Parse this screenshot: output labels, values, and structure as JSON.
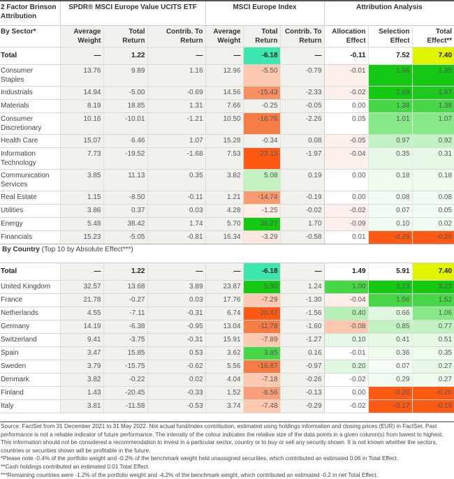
{
  "header": {
    "corner": "2 Factor Brinson Attribution",
    "groups": [
      "SPDR® MSCI Europe Value UCITS ETF",
      "MSCI Europe Index",
      "Attribution Analysis"
    ],
    "sector_label": "By Sector*",
    "columns": [
      "Average Weight",
      "Total Return",
      "Contrib. To Return",
      "Average Weight",
      "Total Return",
      "Contrib. To Return",
      "Allocation Effect",
      "Selection Effect",
      "Total Effect**"
    ]
  },
  "sector_total": {
    "label": "Total",
    "values": [
      "—",
      "1.22",
      "—",
      "—",
      "-6.18",
      "—",
      "-0.11",
      "7.52",
      "7.40"
    ],
    "colors": [
      "",
      "",
      "",
      "",
      "#3de8b0",
      "",
      "",
      "",
      "#e2f500"
    ]
  },
  "sectors": [
    {
      "label": "Consumer Staples",
      "values": [
        "13.76",
        "9.89",
        "1.16",
        "12.96",
        "-5.50",
        "-0.79",
        "-0.01",
        "1.96",
        "1.95"
      ],
      "colors": [
        "",
        "",
        "",
        "",
        "#fcc8b0",
        "",
        "#fdf0ec",
        "#14c814",
        "#14c814"
      ]
    },
    {
      "label": "Industrials",
      "values": [
        "14.94",
        "-5.00",
        "-0.69",
        "14.56",
        "-15.43",
        "-2.33",
        "-0.02",
        "1.69",
        "1.67"
      ],
      "colors": [
        "",
        "",
        "",
        "",
        "#f79060",
        "",
        "#fdf0ec",
        "#14c814",
        "#1ec81e"
      ]
    },
    {
      "label": "Materials",
      "values": [
        "8.19",
        "18.85",
        "1.31",
        "7.66",
        "-0.25",
        "-0.05",
        "0.00",
        "1.38",
        "1.38"
      ],
      "colors": [
        "",
        "",
        "",
        "",
        "",
        "",
        "#ffffff",
        "#46d846",
        "#46d846"
      ]
    },
    {
      "label": "Consumer Discretionary",
      "values": [
        "10.16",
        "-10.01",
        "-1.21",
        "10.50",
        "-18.76",
        "-2.26",
        "0.05",
        "1.01",
        "1.07"
      ],
      "colors": [
        "",
        "",
        "",
        "",
        "#f77c44",
        "",
        "#ffffff",
        "#86e886",
        "#86e886"
      ]
    },
    {
      "label": "Health Care",
      "values": [
        "15.07",
        "6.46",
        "1.07",
        "15.28",
        "-0.34",
        "0.08",
        "-0.05",
        "0.97",
        "0.92"
      ],
      "colors": [
        "",
        "",
        "",
        "",
        "",
        "",
        "#fdf0ec",
        "#c2f2c2",
        "#c2f2c2"
      ]
    },
    {
      "label": "Information Technology",
      "values": [
        "7.73",
        "-19.52",
        "-1.68",
        "7.53",
        "-23.15",
        "-1.97",
        "-0.04",
        "0.35",
        "0.31"
      ],
      "colors": [
        "",
        "",
        "",
        "",
        "#ff5a14",
        "",
        "#fdf0ec",
        "#e6f9e6",
        "#e6f9e6"
      ]
    },
    {
      "label": "Communication Services",
      "values": [
        "3.85",
        "11.13",
        "0.35",
        "3.82",
        "5.08",
        "0.19",
        "0.00",
        "0.18",
        "0.18"
      ],
      "colors": [
        "",
        "",
        "",
        "",
        "#c2f2c2",
        "",
        "#ffffff",
        "#eefbee",
        "#eefbee"
      ]
    },
    {
      "label": "Real Estate",
      "values": [
        "1.15",
        "-8.50",
        "-0.11",
        "1.21",
        "-14.74",
        "-0.19",
        "0.00",
        "0.08",
        "0.08"
      ],
      "colors": [
        "",
        "",
        "",
        "",
        "#f79a70",
        "",
        "#ffffff",
        "#f2fcf2",
        "#f2fcf2"
      ]
    },
    {
      "label": "Utilities",
      "values": [
        "3.86",
        "0.37",
        "0.03",
        "4.28",
        "-1.25",
        "-0.02",
        "-0.02",
        "0.07",
        "0.05"
      ],
      "colors": [
        "",
        "",
        "",
        "",
        "#fdeee8",
        "",
        "#fdf0ec",
        "#f2fcf2",
        "#f2fcf2"
      ]
    },
    {
      "label": "Energy",
      "values": [
        "5.48",
        "38.42",
        "1.74",
        "5.70",
        "36.27",
        "1.70",
        "-0.09",
        "0.10",
        "0.02"
      ],
      "colors": [
        "",
        "",
        "",
        "",
        "#14c814",
        "",
        "#fdf0ec",
        "#f2fcf2",
        "#f2fcf2"
      ]
    },
    {
      "label": "Financials",
      "values": [
        "15.23",
        "-5.05",
        "-0.81",
        "16.34",
        "-3.29",
        "-0.58",
        "0.01",
        "-0.29",
        "-0.28"
      ],
      "colors": [
        "",
        "",
        "",
        "",
        "#fde8e0",
        "",
        "#ffffff",
        "#ff5a14",
        "#ff5a14"
      ]
    }
  ],
  "country_heading": {
    "bold": "By Country",
    "rest": " (Top 10 by Absolute Effect***)"
  },
  "country_total": {
    "label": "Total",
    "values": [
      "—",
      "1.22",
      "—",
      "—",
      "-6.18",
      "—",
      "1.49",
      "5.91",
      "7.40"
    ],
    "colors": [
      "",
      "",
      "",
      "",
      "#3de8b0",
      "",
      "#ffffff",
      "#ffffff",
      "#e2f500"
    ]
  },
  "countries": [
    {
      "label": "United Kingdom",
      "values": [
        "32.57",
        "13.68",
        "3.89",
        "23.87",
        "5.90",
        "1.24",
        "1.00",
        "2.23",
        "3.23"
      ],
      "colors": [
        "",
        "",
        "",
        "",
        "#14c814",
        "",
        "#46d846",
        "#14c814",
        "#14c814"
      ]
    },
    {
      "label": "France",
      "values": [
        "21.78",
        "-0.27",
        "0.03",
        "17.76",
        "-7.29",
        "-1.30",
        "-0.04",
        "1.56",
        "1.52"
      ],
      "colors": [
        "",
        "",
        "",
        "",
        "#fcc8b0",
        "",
        "#fdeeea",
        "#46d846",
        "#46d846"
      ]
    },
    {
      "label": "Netherlands",
      "values": [
        "4.55",
        "-7.11",
        "-0.31",
        "6.74",
        "-20.47",
        "-1.56",
        "0.40",
        "0.66",
        "1.06"
      ],
      "colors": [
        "",
        "",
        "",
        "",
        "#ff5a14",
        "",
        "#b6f0b6",
        "#e0f8e0",
        "#86e886"
      ]
    },
    {
      "label": "Germany",
      "values": [
        "14.19",
        "-6.38",
        "-0.95",
        "13.04",
        "-11.78",
        "-1.60",
        "-0.08",
        "0.85",
        "0.77"
      ],
      "colors": [
        "",
        "",
        "",
        "",
        "#f77c44",
        "",
        "#fcc8b0",
        "#c2f2c2",
        "#c2f2c2"
      ]
    },
    {
      "label": "Switzerland",
      "values": [
        "9.41",
        "-3.75",
        "-0.31",
        "15.91",
        "-7.89",
        "-1.27",
        "0.10",
        "0.41",
        "0.51"
      ],
      "colors": [
        "",
        "",
        "",
        "",
        "#fcc8b0",
        "",
        "#e6f9e6",
        "#e6f9e6",
        "#e6f9e6"
      ]
    },
    {
      "label": "Spain",
      "values": [
        "3.47",
        "15.85",
        "0.53",
        "3.62",
        "3.85",
        "0.16",
        "-0.01",
        "0.36",
        "0.35"
      ],
      "colors": [
        "",
        "",
        "",
        "",
        "#46d846",
        "",
        "#ffffff",
        "#eefbee",
        "#eefbee"
      ]
    },
    {
      "label": "Sweden",
      "values": [
        "3.79",
        "-15.75",
        "-0.62",
        "5.56",
        "-16.87",
        "-0.97",
        "0.20",
        "0.07",
        "0.27"
      ],
      "colors": [
        "",
        "",
        "",
        "",
        "#f77c44",
        "",
        "#e0f8e0",
        "#f6fdf6",
        "#e6f9e6"
      ]
    },
    {
      "label": "Denmark",
      "values": [
        "3.82",
        "-0.22",
        "0.02",
        "4.04",
        "-7.18",
        "-0.26",
        "-0.02",
        "0.29",
        "0.27"
      ],
      "colors": [
        "",
        "",
        "",
        "",
        "#fcc8b0",
        "",
        "#ffffff",
        "#eefbee",
        "#eefbee"
      ]
    },
    {
      "label": "Finland",
      "values": [
        "1.43",
        "-20.45",
        "-0.33",
        "1.52",
        "-8.56",
        "-0.13",
        "0.00",
        "-0.20",
        "-0.20"
      ],
      "colors": [
        "",
        "",
        "",
        "",
        "#f9a07a",
        "",
        "#ffffff",
        "#ff5a14",
        "#ff5a14"
      ]
    },
    {
      "label": "Italy",
      "values": [
        "3.81",
        "-11.58",
        "-0.53",
        "3.74",
        "-7.48",
        "-0.29",
        "-0.02",
        "-0.17",
        "-0.19"
      ],
      "colors": [
        "",
        "",
        "",
        "",
        "#fcc8b0",
        "",
        "#ffffff",
        "#ff5a14",
        "#ff5a14"
      ]
    }
  ],
  "footer": [
    "Source: FactSet from 31 December 2021 to 31 May 2022. Not actual fund/index contribution, estimated using holdings information and closing prices (EUR) in FactSet. Past performance is not a reliable indicator of future performance. The intensity of the colour indicates the relative size of the data points in a given column(s) from lowest to highest. This information should not be considered a recommendation to invest in a particular sector, country or to buy or sell any security shown. It is not known whether the sectors, countries or securities shown will be profitable in the future.",
    "*Please note -0.4% of the portfolio weight and -0.2% of the benchmark weight held unassigned securities, which contributed an estimated 0.06 in Total Effect.",
    "**Cash holdings contributed an estimated 0.01 Total Effect.",
    "***Remaining countries were -1.2% of the portfolio weight and -4.2% of the benchmark weight, which contributed an estimated -0.2 in net Total Effect."
  ]
}
